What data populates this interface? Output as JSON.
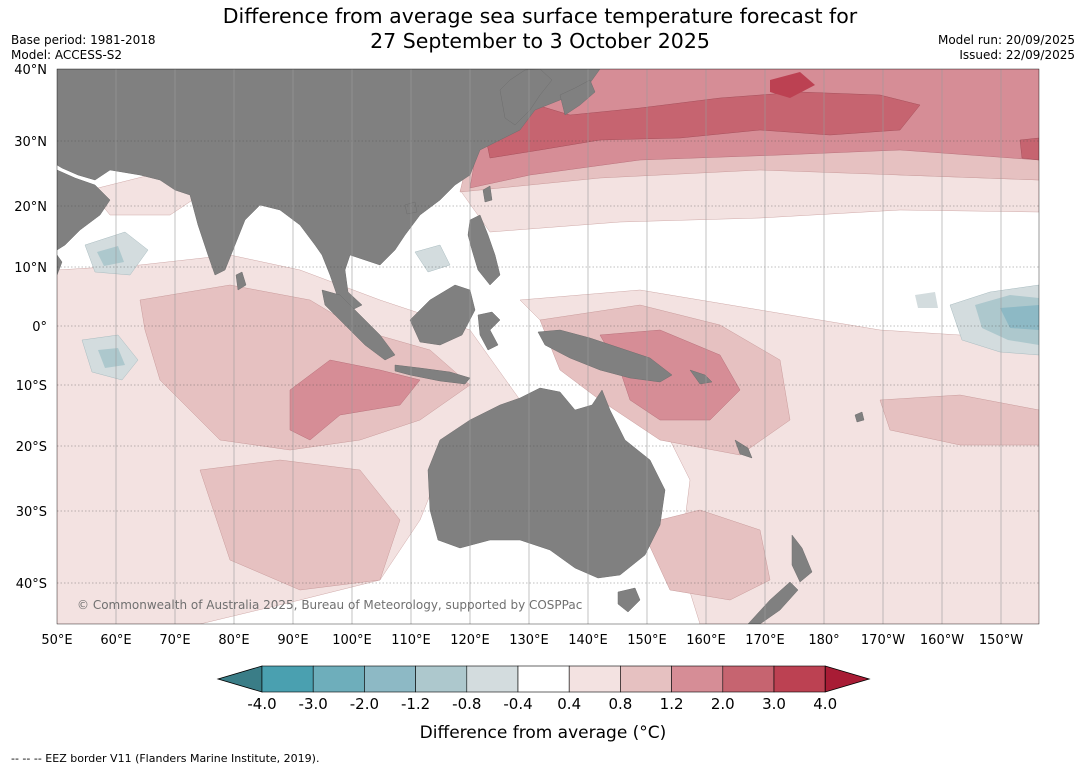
{
  "title": {
    "line1": "Difference from average sea surface temperature forecast for",
    "line2": "27 September to 3 October 2025"
  },
  "meta": {
    "base_period": "Base period: 1981-2018",
    "model": "Model: ACCESS-S2",
    "model_run": "Model run: 20/09/2025",
    "issued": "Issued: 22/09/2025"
  },
  "map": {
    "region": "Indo-Pacific",
    "lon_range": [
      50,
      215
    ],
    "lat_range": [
      -46,
      40
    ],
    "lat_labels": [
      {
        "lat": 40,
        "label": "40°N"
      },
      {
        "lat": 30,
        "label": "30°N"
      },
      {
        "lat": 20,
        "label": "20°N"
      },
      {
        "lat": 10,
        "label": "10°N"
      },
      {
        "lat": 0,
        "label": "0°"
      },
      {
        "lat": -10,
        "label": "10°S"
      },
      {
        "lat": -20,
        "label": "20°S"
      },
      {
        "lat": -30,
        "label": "30°S"
      },
      {
        "lat": -40,
        "label": "40°S"
      }
    ],
    "lon_labels": [
      {
        "lon": 50,
        "label": "50°E"
      },
      {
        "lon": 60,
        "label": "60°E"
      },
      {
        "lon": 70,
        "label": "70°E"
      },
      {
        "lon": 80,
        "label": "80°E"
      },
      {
        "lon": 90,
        "label": "90°E"
      },
      {
        "lon": 100,
        "label": "100°E"
      },
      {
        "lon": 110,
        "label": "110°E"
      },
      {
        "lon": 120,
        "label": "120°E"
      },
      {
        "lon": 130,
        "label": "130°E"
      },
      {
        "lon": 140,
        "label": "140°E"
      },
      {
        "lon": 150,
        "label": "150°E"
      },
      {
        "lon": 160,
        "label": "160°E"
      },
      {
        "lon": 170,
        "label": "170°E"
      },
      {
        "lon": 180,
        "label": "180°"
      },
      {
        "lon": 190,
        "label": "170°W"
      },
      {
        "lon": 200,
        "label": "160°W"
      },
      {
        "lon": 210,
        "label": "150°W"
      }
    ],
    "copyright": "© Commonwealth of Australia 2025, Bureau of Meteorology, supported by COSPPac"
  },
  "colorbar": {
    "ticks": [
      "-4.0",
      "-3.0",
      "-2.0",
      "-1.2",
      "-0.8",
      "-0.4",
      "0.4",
      "0.8",
      "1.2",
      "2.0",
      "3.0",
      "4.0"
    ],
    "colors": [
      "#3a7d87",
      "#4aa0b0",
      "#6eaebb",
      "#8db9c5",
      "#adc8cd",
      "#d3dcde",
      "#ffffff",
      "#f3e2e1",
      "#e6c1c1",
      "#d68d96",
      "#c66470",
      "#bc4152",
      "#a81c35"
    ],
    "label": "Difference from average (°C)"
  },
  "footnote": "--  --  -- EEZ border V11 (Flanders Marine Institute, 2019)."
}
